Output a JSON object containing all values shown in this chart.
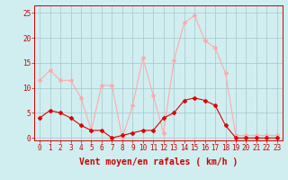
{
  "hours": [
    0,
    1,
    2,
    3,
    4,
    5,
    6,
    7,
    8,
    9,
    10,
    11,
    12,
    13,
    14,
    15,
    16,
    17,
    18,
    19,
    20,
    21,
    22,
    23
  ],
  "vent_moyen": [
    4,
    5.5,
    5,
    4,
    2.5,
    1.5,
    1.5,
    0,
    0.5,
    1,
    1.5,
    1.5,
    4,
    5,
    7.5,
    8,
    7.5,
    6.5,
    2.5,
    0,
    0,
    0,
    0,
    0
  ],
  "en_rafales": [
    11.5,
    13.5,
    11.5,
    11.5,
    8,
    1.5,
    10.5,
    10.5,
    0,
    6.5,
    16,
    8.5,
    1,
    15.5,
    23,
    24.5,
    19.5,
    18,
    13,
    0.5,
    0.5,
    0.5,
    0.5,
    0.5
  ],
  "color_moyen": "#dd0000",
  "color_rafales": "#ffaaaa",
  "bg_color": "#d0eef0",
  "grid_color": "#aaccd0",
  "ylabel_values": [
    0,
    5,
    10,
    15,
    20,
    25
  ],
  "ylim": [
    -0.5,
    26.5
  ],
  "xlim": [
    -0.5,
    23.5
  ],
  "xlabel": "Vent moyen/en rafales ( km/h )",
  "axis_color": "#cc0000",
  "marker": "D",
  "markersize": 2.0,
  "linewidth": 0.8,
  "tick_fontsize": 5.5,
  "xlabel_fontsize": 7.0
}
